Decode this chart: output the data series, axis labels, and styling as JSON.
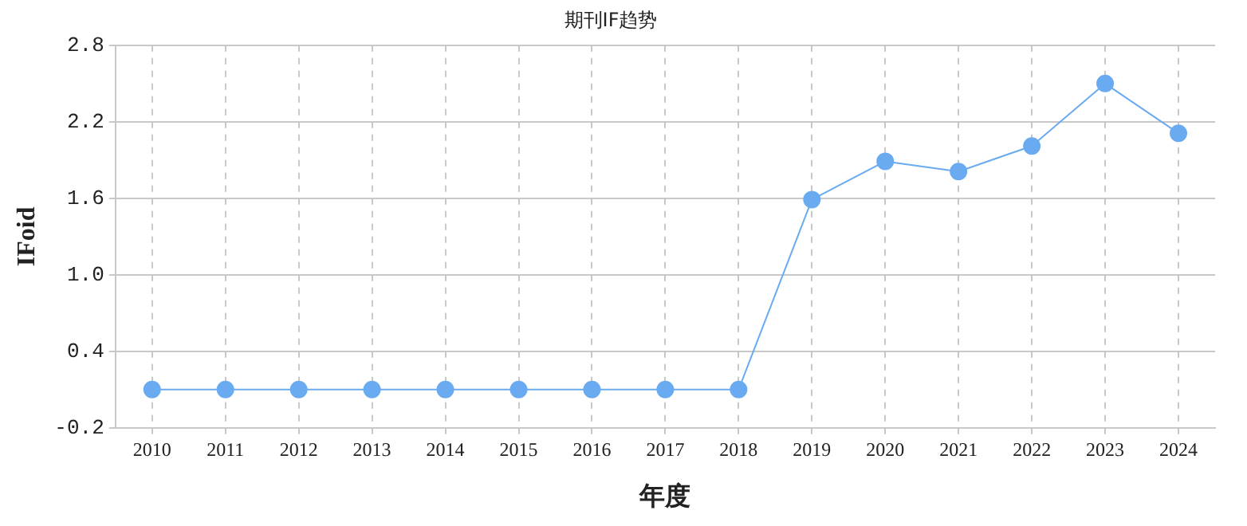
{
  "chart_data": {
    "type": "line",
    "title": "期刊IF趋势",
    "xlabel": "年度",
    "ylabel": "IFoid",
    "categories": [
      "2010",
      "2011",
      "2012",
      "2013",
      "2014",
      "2015",
      "2016",
      "2017",
      "2018",
      "2019",
      "2020",
      "2021",
      "2022",
      "2023",
      "2024"
    ],
    "series": [
      {
        "color": "#6aaaf0",
        "values": [
          0.1,
          0.1,
          0.1,
          0.1,
          0.1,
          0.1,
          0.1,
          0.1,
          0.1,
          1.59,
          1.89,
          1.81,
          2.01,
          2.5,
          2.11
        ]
      }
    ],
    "ylim": [
      -0.2,
      2.8
    ],
    "yticks": [
      -0.2,
      0.4,
      {
        "value": 1,
        "label": "1.0"
      },
      1.6,
      2.2,
      2.8
    ],
    "grid": true,
    "legend": false,
    "marker": "circle",
    "line_style": "solid"
  }
}
